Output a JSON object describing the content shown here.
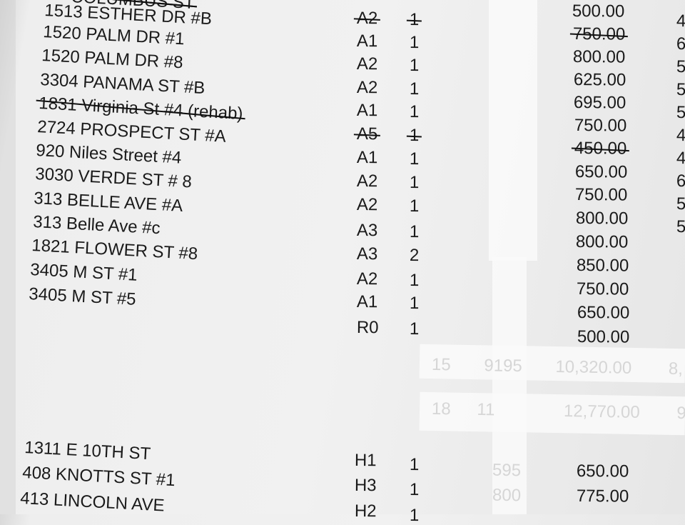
{
  "top_partial": "COLUMBUS ST",
  "rows": [
    {
      "address": "1513 ESTHER DR #B"
    },
    {
      "address": "1520 PALM DR #1"
    },
    {
      "address": "1520 PALM DR #8"
    },
    {
      "address": "3304 PANAMA ST #B"
    },
    {
      "address": "1831 Virginia St #4 (rehab)",
      "struck": true
    },
    {
      "address": "2724 PROSPECT ST #A"
    },
    {
      "address": "920 Niles Street #4"
    },
    {
      "address": "3030 VERDE ST # 8"
    },
    {
      "address": "313 BELLE AVE #A"
    },
    {
      "address": "313 Belle Ave #c"
    },
    {
      "address": "1821 FLOWER ST #8"
    },
    {
      "address": "3405 M ST #1"
    },
    {
      "address": "3405 M ST #5"
    }
  ],
  "codes": [
    {
      "code": "A2",
      "qty": "1",
      "struck": true
    },
    {
      "code": "A1",
      "qty": "1"
    },
    {
      "code": "A2",
      "qty": "1"
    },
    {
      "code": "A2",
      "qty": "1"
    },
    {
      "code": "A1",
      "qty": "1"
    },
    {
      "code": "A5",
      "qty": "1",
      "struck": true
    },
    {
      "code": "A1",
      "qty": "1"
    },
    {
      "code": "A2",
      "qty": "1"
    },
    {
      "code": "A2",
      "qty": "1"
    },
    {
      "code": "A3",
      "qty": "1"
    },
    {
      "code": "A3",
      "qty": "2"
    },
    {
      "code": "A2",
      "qty": "1"
    },
    {
      "code": "A1",
      "qty": "1"
    },
    {
      "code": "R0",
      "qty": "1"
    }
  ],
  "amounts": [
    {
      "v": "500.00"
    },
    {
      "v": "750.00",
      "struck": true
    },
    {
      "v": "800.00"
    },
    {
      "v": "625.00"
    },
    {
      "v": "695.00"
    },
    {
      "v": "750.00"
    },
    {
      "v": "450.00",
      "struck": true
    },
    {
      "v": "650.00"
    },
    {
      "v": "750.00"
    },
    {
      "v": "800.00"
    },
    {
      "v": "800.00"
    },
    {
      "v": "850.00"
    },
    {
      "v": "750.00"
    },
    {
      "v": "650.00"
    },
    {
      "v": "500.00"
    }
  ],
  "edge_digits": [
    "4",
    "6",
    "5",
    "5",
    "5",
    "4",
    "4",
    "6",
    "5",
    "5"
  ],
  "tape_totals": [
    {
      "a": "15",
      "b": "9195",
      "c": "10,320.00",
      "d": "8,"
    },
    {
      "a": "18",
      "b": "11",
      "c": "12,770.00",
      "d": "9,"
    }
  ],
  "bottom_rows": [
    {
      "address": "1311 E 10TH ST",
      "code": "H1",
      "qty": "1",
      "amount": "650.00",
      "faint": "595"
    },
    {
      "address": "408 KNOTTS ST #1",
      "code": "H3",
      "qty": "1",
      "amount": "775.00",
      "faint": "800"
    },
    {
      "address": "413 LINCOLN AVE",
      "code": "H2",
      "qty": "1",
      "amount": "",
      "faint": ""
    }
  ]
}
